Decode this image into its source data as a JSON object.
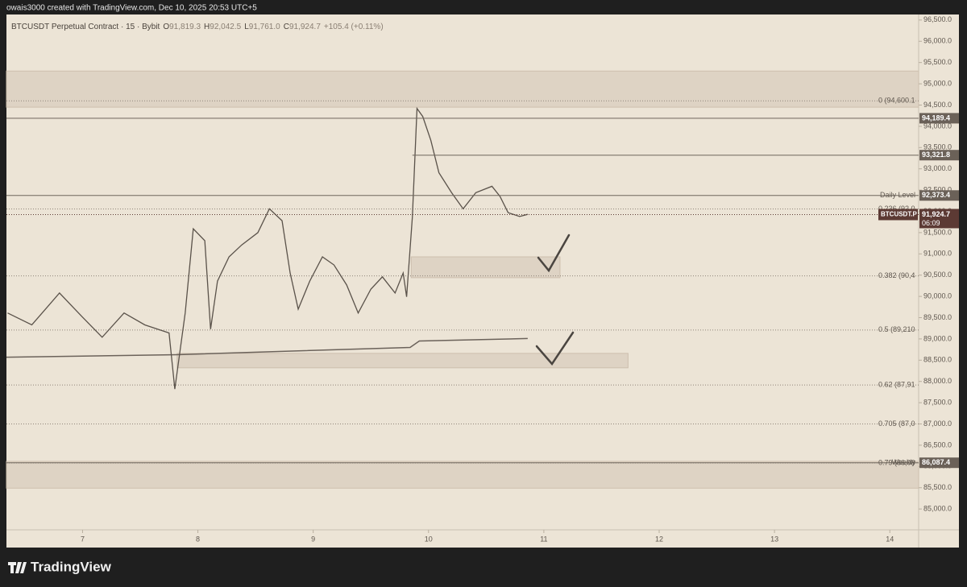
{
  "chart_data": {
    "type": "line",
    "header": "owais3000 created with TradingView.com, Dec 10, 2025 20:53 UTC+5",
    "title": "BTCUSDT Perpetual Contract · 15 · Bybit",
    "ohlc": [
      {
        "k": "O",
        "v": "91,819.3"
      },
      {
        "k": "H",
        "v": "92,042.5"
      },
      {
        "k": "L",
        "v": "91,761.0"
      },
      {
        "k": "C",
        "v": "91,924.7"
      }
    ],
    "change": "+105.4 (+0.11%)",
    "brand": "TradingView",
    "x": [
      6.35,
      6.56,
      6.8,
      7.0,
      7.17,
      7.36,
      7.54,
      7.75,
      7.8,
      7.89,
      7.96,
      8.06,
      8.11,
      8.17,
      8.27,
      8.38,
      8.52,
      8.62,
      8.73,
      8.8,
      8.87,
      8.97,
      9.08,
      9.18,
      9.29,
      9.39,
      9.5,
      9.6,
      9.71,
      9.78,
      9.81,
      9.86,
      9.9,
      9.95,
      10.02,
      10.09,
      10.2,
      10.3,
      10.41,
      10.55,
      10.62,
      10.69,
      10.79,
      10.86
    ],
    "series": [
      {
        "name": "BTCUSDT.P",
        "color": "#5a524a",
        "values": [
          89610,
          89330,
          90080,
          89510,
          89040,
          89610,
          89330,
          89140,
          87820,
          89610,
          91590,
          91310,
          89230,
          90360,
          90930,
          91210,
          91500,
          92060,
          91780,
          90550,
          89700,
          90360,
          90930,
          90740,
          90270,
          89610,
          90170,
          90460,
          90080,
          90550,
          89990,
          91870,
          94420,
          94230,
          93670,
          92910,
          92440,
          92060,
          92440,
          92590,
          92350,
          91970,
          91880,
          91930
        ]
      }
    ],
    "ma": {
      "color": "#6b625a",
      "x": [
        6.34,
        7.82,
        9.84,
        9.92,
        10.86
      ],
      "values": [
        88570,
        88630,
        88800,
        88950,
        89010
      ]
    },
    "last": {
      "value": 91924.7,
      "label": "91,924.7",
      "countdown": "06:09",
      "color": "#5c3a34"
    },
    "levels": [
      {
        "value": 94189.4,
        "label": "94,189.4",
        "start": 6.34
      },
      {
        "value": 93321.8,
        "label": "93,321.8",
        "start": 9.86
      },
      {
        "value": 92373.4,
        "label": "92,373.4",
        "name": "Daily Level",
        "start": 6.34
      },
      {
        "value": 86087.4,
        "label": "86,087.4",
        "name": "Weekly",
        "start": 6.34
      }
    ],
    "fib": [
      {
        "value": 94600.1,
        "label": "0 (94,600.1"
      },
      {
        "value": 92056,
        "label": "0.236 (92,0"
      },
      {
        "value": 90482,
        "label": "0.382 (90,4"
      },
      {
        "value": 89210,
        "label": "0.5 (89,210"
      },
      {
        "value": 87916,
        "label": "0.62 (87,91"
      },
      {
        "value": 87000,
        "label": "0.705 (87,0"
      },
      {
        "value": 86084,
        "label": "0.79 (86,08"
      }
    ],
    "zones": [
      {
        "top": 95300,
        "bottom": 94450,
        "start": 6.34,
        "end": 14.25
      },
      {
        "top": 90930,
        "bottom": 90440,
        "start": 9.85,
        "end": 11.14
      },
      {
        "top": 88660,
        "bottom": 88320,
        "start": 7.82,
        "end": 11.73
      },
      {
        "top": 86120,
        "bottom": 85490,
        "start": 6.34,
        "end": 14.25
      }
    ],
    "xlim": [
      6.34,
      14.25
    ],
    "xticks": [
      7,
      8,
      9,
      10,
      11,
      12,
      13,
      14
    ],
    "ylim": [
      84510,
      96630
    ],
    "yticks": [
      {
        "value": 85000,
        "label": "85,000.0"
      },
      {
        "value": 85500,
        "label": "85,500.0"
      },
      {
        "value": 86000,
        "label": "86,000.0"
      },
      {
        "value": 86500,
        "label": "86,500.0"
      },
      {
        "value": 87000,
        "label": "87,000.0"
      },
      {
        "value": 87500,
        "label": "87,500.0"
      },
      {
        "value": 88000,
        "label": "88,000.0"
      },
      {
        "value": 88500,
        "label": "88,500.0"
      },
      {
        "value": 89000,
        "label": "89,000.0"
      },
      {
        "value": 89500,
        "label": "89,500.0"
      },
      {
        "value": 90000,
        "label": "90,000.0"
      },
      {
        "value": 90500,
        "label": "90,500.0"
      },
      {
        "value": 91000,
        "label": "91,000.0"
      },
      {
        "value": 91500,
        "label": "91,500.0"
      },
      {
        "value": 92000,
        "label": "92,000.0"
      },
      {
        "value": 92500,
        "label": "92,500.0"
      },
      {
        "value": 93000,
        "label": "93,000.0"
      },
      {
        "value": 93500,
        "label": "93,500.0"
      },
      {
        "value": 94000,
        "label": "94,000.0"
      },
      {
        "value": 94500,
        "label": "94,500.0"
      },
      {
        "value": 95000,
        "label": "95,000.0"
      },
      {
        "value": 95500,
        "label": "95,500.0"
      },
      {
        "value": 96000,
        "label": "96,000.0"
      },
      {
        "value": 96500,
        "label": "96,500.0"
      }
    ],
    "grid": false
  }
}
